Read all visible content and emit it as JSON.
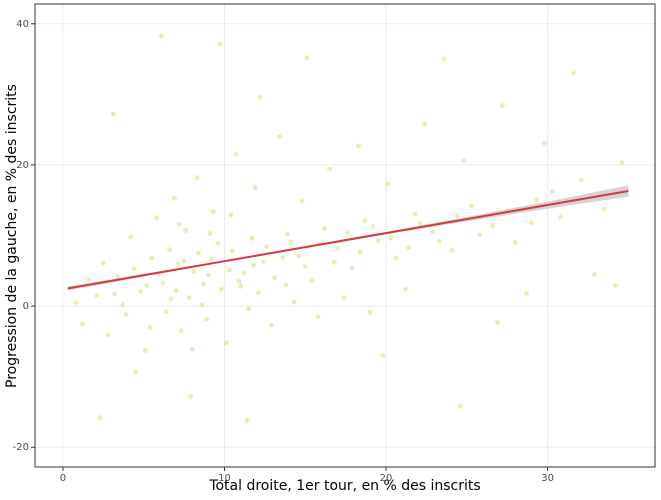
{
  "chart_data": {
    "type": "scatter",
    "xlabel": "Total droite, 1er tour, en % des inscrits",
    "ylabel": "Progression de la gauche, en % des inscrits",
    "xlim": [
      -1.73,
      36.65
    ],
    "ylim": [
      -22.8,
      42.8
    ],
    "xticks": [
      0,
      10,
      20,
      30
    ],
    "yticks": [
      -20,
      0,
      20,
      40
    ],
    "grid": true,
    "points": {
      "color": "#c5d23f",
      "x": [
        2.1,
        3.4,
        4.8,
        5.5,
        6.2,
        7.1,
        7.8,
        8.4,
        9.0,
        9.6,
        10.3,
        11.0,
        11.7,
        12.4,
        13.1,
        13.9,
        14.6,
        15.4,
        16.2,
        17.0,
        17.9,
        18.7,
        19.5,
        20.6,
        21.8,
        22.9,
        24.1,
        25.3,
        26.6,
        28.0,
        29.3,
        30.8,
        32.1,
        33.5,
        34.6,
        1.2,
        2.8,
        3.9,
        5.1,
        6.4,
        7.3,
        8.9,
        10.1,
        11.5,
        12.9,
        14.3,
        15.8,
        17.4,
        19.0,
        21.2,
        4.2,
        5.8,
        6.9,
        7.6,
        8.3,
        9.3,
        10.7,
        11.9,
        13.4,
        14.8,
        16.5,
        18.3,
        20.1,
        22.4,
        24.8,
        27.2,
        29.8,
        31.6,
        15.1,
        9.7,
        6.1,
        12.2,
        3.1,
        23.6,
        26.9,
        24.6,
        7.9,
        4.5,
        2.3,
        11.4,
        19.8,
        28.7,
        32.9,
        34.2,
        0.8,
        1.6,
        2.5,
        3.7,
        4.4,
        5.2,
        5.9,
        6.6,
        7.0,
        7.5,
        8.1,
        8.7,
        9.2,
        9.8,
        10.5,
        11.2,
        11.8,
        12.6,
        13.6,
        14.1,
        15.0,
        15.9,
        16.8,
        17.6,
        18.4,
        19.2,
        20.3,
        21.4,
        22.1,
        23.3,
        24.4,
        25.8,
        27.5,
        29.0,
        30.3,
        6.7,
        8.6,
        10.9,
        12.1,
        13.8,
        7.2,
        9.1,
        10.4,
        8.0,
        5.4,
        3.2
      ],
      "y": [
        1.5,
        4.2,
        2.1,
        6.8,
        3.3,
        5.9,
        1.2,
        7.5,
        4.4,
        8.9,
        5.1,
        2.8,
        9.6,
        6.3,
        4.0,
        10.2,
        7.1,
        3.6,
        11.0,
        8.2,
        5.4,
        12.1,
        9.3,
        6.8,
        13.0,
        10.5,
        7.9,
        14.2,
        11.4,
        9.0,
        15.1,
        12.6,
        17.9,
        13.7,
        20.3,
        -2.5,
        -4.1,
        -1.2,
        -6.3,
        -0.8,
        -3.5,
        -1.9,
        -5.2,
        -0.4,
        -2.7,
        0.6,
        -1.5,
        1.2,
        -0.9,
        2.4,
        9.8,
        12.5,
        15.3,
        10.7,
        18.2,
        13.4,
        21.5,
        16.8,
        24.0,
        14.9,
        19.4,
        22.7,
        17.3,
        25.8,
        20.6,
        28.4,
        23.1,
        33.0,
        35.2,
        37.1,
        38.3,
        29.6,
        27.2,
        35.0,
        -2.3,
        -14.2,
        -12.8,
        -9.4,
        -15.8,
        -16.2,
        -7.0,
        1.8,
        4.5,
        2.9,
        0.5,
        3.8,
        6.1,
        0.2,
        5.3,
        2.9,
        4.6,
        8.0,
        2.2,
        6.4,
        4.9,
        3.1,
        6.7,
        2.4,
        7.8,
        4.7,
        5.8,
        8.4,
        6.9,
        9.1,
        5.6,
        8.8,
        6.2,
        10.4,
        7.7,
        11.3,
        9.6,
        8.3,
        11.7,
        9.2,
        12.8,
        10.1,
        13.5,
        11.8,
        16.2,
        1.0,
        0.2,
        3.5,
        1.9,
        3.0,
        11.6,
        10.3,
        12.9,
        -6.1,
        -3.0,
        1.7
      ]
    },
    "fit": {
      "color": "#d7393a",
      "band_color": "#b8b8b8",
      "x": [
        0.3,
        10,
        20,
        30,
        35
      ],
      "y": [
        2.5,
        6.36,
        10.34,
        14.32,
        16.3
      ],
      "lower": [
        2.2,
        6.26,
        10.2,
        13.8,
        15.5
      ],
      "upper": [
        2.8,
        6.46,
        10.5,
        14.8,
        17.1
      ]
    }
  }
}
